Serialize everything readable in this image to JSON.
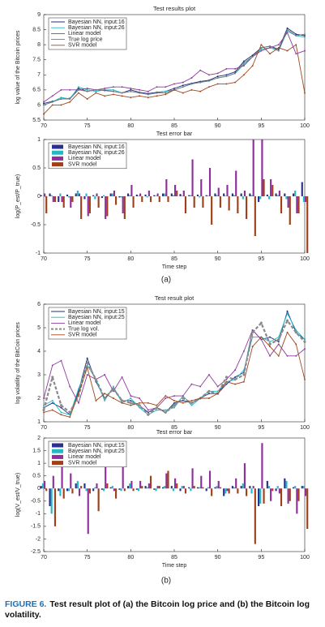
{
  "chart_data": [
    {
      "type": "line",
      "title": "Test results plot",
      "ylabel": "log value of the Bitcoin prices",
      "x": [
        70,
        71,
        72,
        73,
        74,
        75,
        76,
        77,
        78,
        79,
        80,
        81,
        82,
        83,
        84,
        85,
        86,
        87,
        88,
        89,
        90,
        91,
        92,
        93,
        94,
        95,
        96,
        97,
        98,
        99,
        100
      ],
      "xlim": [
        70,
        100
      ],
      "xticks": [
        70,
        75,
        80,
        85,
        90,
        95,
        100
      ],
      "ylim": [
        5.5,
        9
      ],
      "yticks": [
        5.5,
        6,
        6.5,
        7,
        7.5,
        8,
        8.5,
        9
      ],
      "legend": "upper left",
      "series": [
        {
          "name": "Bayesian NN, input:16",
          "color": "#1f2f7a",
          "values": [
            6.05,
            6.12,
            6.2,
            6.22,
            6.55,
            6.45,
            6.5,
            6.48,
            6.45,
            6.4,
            6.5,
            6.42,
            6.38,
            6.42,
            6.45,
            6.55,
            6.65,
            6.72,
            6.78,
            6.82,
            6.95,
            7.0,
            7.1,
            7.45,
            7.65,
            7.9,
            7.95,
            7.85,
            8.55,
            8.35,
            8.3
          ]
        },
        {
          "name": "Bayesian NN, input:26",
          "color": "#1fb8c8",
          "values": [
            6.0,
            6.1,
            6.25,
            6.2,
            6.6,
            6.5,
            6.45,
            6.5,
            6.5,
            6.4,
            6.45,
            6.4,
            6.35,
            6.4,
            6.45,
            6.5,
            6.6,
            6.7,
            6.75,
            6.8,
            6.9,
            6.95,
            7.05,
            7.35,
            7.6,
            7.85,
            7.9,
            7.8,
            8.45,
            8.3,
            8.25
          ]
        },
        {
          "name": "Linear model",
          "color": "#8e3a9c",
          "values": [
            6.1,
            6.3,
            6.5,
            6.5,
            6.5,
            6.55,
            6.5,
            6.55,
            6.6,
            6.6,
            6.55,
            6.5,
            6.45,
            6.6,
            6.6,
            6.7,
            6.75,
            6.9,
            7.15,
            7.0,
            7.05,
            7.2,
            7.2,
            7.3,
            7.6,
            7.8,
            7.9,
            8.0,
            8.4,
            7.7,
            7.8
          ]
        },
        {
          "name": "True log price",
          "color": "#7a7a7a",
          "values": [
            6.0,
            6.1,
            6.2,
            6.2,
            6.5,
            6.45,
            6.5,
            6.5,
            6.45,
            6.4,
            6.45,
            6.4,
            6.35,
            6.4,
            6.4,
            6.5,
            6.6,
            6.7,
            6.75,
            6.8,
            6.9,
            6.95,
            7.05,
            7.4,
            7.6,
            7.9,
            7.95,
            7.8,
            8.5,
            8.3,
            8.35
          ]
        },
        {
          "name": "SVR model",
          "color": "#a0461c",
          "values": [
            5.7,
            6.0,
            6.0,
            6.1,
            6.4,
            6.2,
            6.4,
            6.3,
            6.35,
            6.3,
            6.25,
            6.3,
            6.25,
            6.3,
            6.35,
            6.5,
            6.4,
            6.5,
            6.45,
            6.6,
            6.7,
            6.7,
            6.75,
            7.0,
            7.3,
            8.0,
            7.7,
            7.9,
            7.8,
            8.0,
            6.4
          ]
        }
      ]
    },
    {
      "type": "bar",
      "title": "Test error bar",
      "ylabel": "log(P_est/P_true)",
      "xlabel": "Time step",
      "x": [
        70,
        71,
        72,
        73,
        74,
        75,
        76,
        77,
        78,
        79,
        80,
        81,
        82,
        83,
        84,
        85,
        86,
        87,
        88,
        89,
        90,
        91,
        92,
        93,
        94,
        95,
        96,
        97,
        98,
        99,
        100
      ],
      "xlim": [
        70,
        100
      ],
      "xticks": [
        70,
        75,
        80,
        85,
        90,
        95,
        100
      ],
      "ylim": [
        -1,
        1
      ],
      "yticks": [
        -1,
        -0.5,
        0,
        0.5,
        1
      ],
      "legend": "upper left",
      "series": [
        {
          "name": "Bayesian NN, input:16",
          "color": "#2b2f8f",
          "values": [
            0.02,
            0.05,
            -0.1,
            0.03,
            0.05,
            -0.05,
            0.02,
            -0.03,
            0.05,
            -0.02,
            0.05,
            0.03,
            0.03,
            0.02,
            0.05,
            0.05,
            0.04,
            0.02,
            0.03,
            0.02,
            0.05,
            0.05,
            0.05,
            0.05,
            0.05,
            -0.1,
            0.03,
            0.05,
            0.05,
            0.05,
            0.25
          ]
        },
        {
          "name": "Bayesian NN, input:26",
          "color": "#22b8c8",
          "values": [
            0.0,
            0.02,
            0.05,
            -0.02,
            0.1,
            0.05,
            -0.05,
            0.02,
            0.05,
            -0.02,
            0.02,
            0.01,
            -0.02,
            0.01,
            0.05,
            0.02,
            0.01,
            0.02,
            -0.02,
            0.01,
            0.02,
            0.01,
            0.02,
            -0.05,
            0.02,
            -0.05,
            -0.05,
            0.02,
            -0.05,
            0.1,
            -0.1
          ]
        },
        {
          "name": "Linear model",
          "color": "#8e2f9c",
          "values": [
            0.05,
            -0.1,
            -0.1,
            -0.2,
            0.05,
            -0.35,
            0.05,
            -0.4,
            0.1,
            -0.3,
            0.2,
            0.05,
            0.1,
            0.05,
            0.3,
            0.2,
            0.1,
            0.65,
            0.3,
            0.5,
            0.15,
            0.2,
            0.45,
            0.1,
            1.0,
            1.0,
            0.3,
            0.1,
            -0.2,
            -0.3,
            -0.1
          ]
        },
        {
          "name": "SVR model",
          "color": "#a0401a",
          "values": [
            -0.3,
            -0.1,
            -0.2,
            -0.1,
            -0.4,
            -0.3,
            -0.2,
            -0.35,
            -0.15,
            -0.4,
            -0.2,
            -0.1,
            -0.1,
            -0.1,
            -0.1,
            0.1,
            -0.3,
            -0.2,
            -0.2,
            -0.5,
            -0.2,
            -0.25,
            -0.3,
            -0.4,
            -0.7,
            0.3,
            0.2,
            -0.3,
            -0.5,
            -0.3,
            -1.0
          ]
        }
      ]
    },
    {
      "type": "line",
      "title": "Test result plot",
      "ylabel": "log volatility of the BitCoin prices",
      "x": [
        70,
        71,
        72,
        73,
        74,
        75,
        76,
        77,
        78,
        79,
        80,
        81,
        82,
        83,
        84,
        85,
        86,
        87,
        88,
        89,
        90,
        91,
        92,
        93,
        94,
        95,
        96,
        97,
        98,
        99,
        100
      ],
      "xlim": [
        70,
        100
      ],
      "xticks": [
        70,
        75,
        80,
        85,
        90,
        95,
        100
      ],
      "ylim": [
        1,
        6
      ],
      "yticks": [
        1,
        2,
        3,
        4,
        5,
        6
      ],
      "legend": "upper left",
      "series": [
        {
          "name": "Bayesian NN, input:15",
          "color": "#1f2f7a",
          "values": [
            1.6,
            1.8,
            1.6,
            1.3,
            2.3,
            3.7,
            2.7,
            2.0,
            2.4,
            1.9,
            1.9,
            1.7,
            1.4,
            1.6,
            1.4,
            1.8,
            1.9,
            1.8,
            2.0,
            2.2,
            2.2,
            2.6,
            2.9,
            3.1,
            4.9,
            4.5,
            4.6,
            4.4,
            5.7,
            4.8,
            4.5
          ]
        },
        {
          "name": "Bayesian NN, input:25",
          "color": "#1fb8c8",
          "values": [
            1.7,
            1.9,
            1.4,
            1.3,
            2.4,
            3.4,
            2.8,
            1.9,
            2.5,
            1.8,
            2.0,
            1.6,
            1.3,
            1.5,
            1.5,
            1.6,
            2.1,
            1.7,
            2.0,
            2.3,
            2.3,
            2.7,
            2.8,
            3.2,
            4.6,
            4.6,
            4.4,
            4.6,
            5.6,
            4.9,
            4.5
          ]
        },
        {
          "name": "Linear model",
          "color": "#8e3a9c",
          "values": [
            2.0,
            3.4,
            3.6,
            2.5,
            1.8,
            3.0,
            2.8,
            3.0,
            2.3,
            2.9,
            2.1,
            2.0,
            1.5,
            1.6,
            2.0,
            2.1,
            2.1,
            2.6,
            2.5,
            3.0,
            2.5,
            2.8,
            3.2,
            4.0,
            4.9,
            4.5,
            3.8,
            4.3,
            3.8,
            3.8,
            4.1
          ]
        },
        {
          "name": "True log vol.",
          "color": "#8a8a8a",
          "dash": true,
          "values": [
            1.5,
            2.9,
            1.7,
            1.4,
            2.1,
            3.5,
            2.8,
            2.0,
            2.4,
            1.9,
            1.8,
            1.7,
            1.3,
            1.6,
            1.4,
            1.7,
            2.0,
            1.8,
            2.0,
            2.3,
            2.2,
            2.9,
            2.8,
            3.0,
            4.8,
            5.2,
            4.3,
            4.5,
            5.3,
            4.8,
            4.4
          ]
        },
        {
          "name": "SVR model",
          "color": "#a0461c",
          "values": [
            1.4,
            1.5,
            1.3,
            1.2,
            2.2,
            3.3,
            1.9,
            2.2,
            2.0,
            1.8,
            1.7,
            1.8,
            1.8,
            1.7,
            2.1,
            1.9,
            1.8,
            1.9,
            2.0,
            2.0,
            2.2,
            2.7,
            2.6,
            2.7,
            4.2,
            4.6,
            4.2,
            3.8,
            4.8,
            4.3,
            2.8
          ]
        }
      ]
    },
    {
      "type": "bar",
      "title": "Test error bar",
      "ylabel": "log(V_est/V_true)",
      "xlabel": "Time step",
      "x": [
        70,
        71,
        72,
        73,
        74,
        75,
        76,
        77,
        78,
        79,
        80,
        81,
        82,
        83,
        84,
        85,
        86,
        87,
        88,
        89,
        90,
        91,
        92,
        93,
        94,
        95,
        96,
        97,
        98,
        99,
        100
      ],
      "xlim": [
        70,
        100
      ],
      "xticks": [
        70,
        75,
        80,
        85,
        90,
        95,
        100
      ],
      "ylim": [
        -2.5,
        2
      ],
      "yticks": [
        -2.5,
        -2,
        -1.5,
        -1,
        -0.5,
        0,
        0.5,
        1,
        1.5,
        2
      ],
      "legend": "upper left",
      "series": [
        {
          "name": "Bayesian NN, input:15",
          "color": "#2b2f8f",
          "values": [
            0.1,
            -0.7,
            -0.1,
            -0.1,
            0.2,
            0.2,
            -0.1,
            -0.05,
            0.05,
            -0.05,
            0.1,
            -0.05,
            0.1,
            -0.05,
            0.05,
            0.1,
            -0.1,
            0.05,
            0.05,
            -0.1,
            0.05,
            -0.3,
            0.1,
            0.1,
            0.1,
            -0.7,
            0.3,
            -0.1,
            0.4,
            0.05,
            0.1
          ]
        },
        {
          "name": "Bayesian NN, input:25",
          "color": "#22b8c8",
          "values": [
            0.2,
            -1.0,
            -0.3,
            -0.1,
            0.3,
            -0.1,
            0.05,
            -0.1,
            0.1,
            -0.1,
            0.2,
            -0.1,
            0.05,
            -0.1,
            0.1,
            -0.1,
            0.1,
            -0.1,
            0.05,
            0.05,
            0.1,
            -0.2,
            0.05,
            0.2,
            -0.2,
            -0.6,
            0.1,
            0.1,
            0.3,
            0.1,
            0.1
          ]
        },
        {
          "name": "Linear model",
          "color": "#8e2f9c",
          "values": [
            0.3,
            0.5,
            1.0,
            0.6,
            -0.3,
            -1.8,
            0.2,
            1.0,
            -0.1,
            1.0,
            0.3,
            0.3,
            0.2,
            0.1,
            0.6,
            0.4,
            0.1,
            0.8,
            0.5,
            0.7,
            0.3,
            -0.1,
            0.4,
            1.0,
            0.1,
            1.8,
            -0.5,
            -0.2,
            -0.6,
            -1.0,
            -0.3
          ]
        },
        {
          "name": "SVR model",
          "color": "#a0401a",
          "values": [
            -0.1,
            -1.5,
            -0.4,
            -0.2,
            0.1,
            -0.2,
            -0.9,
            0.2,
            -0.4,
            -0.1,
            -0.1,
            0.1,
            0.5,
            0.1,
            0.7,
            0.2,
            -0.2,
            0.1,
            0.05,
            -0.3,
            0.05,
            -0.2,
            -0.2,
            -0.3,
            -2.2,
            -0.6,
            -0.1,
            -0.7,
            -0.5,
            -0.5,
            -1.6
          ]
        }
      ]
    }
  ],
  "panel_labels": [
    "(a)",
    "(b)"
  ],
  "caption": {
    "label": "FIGURE 6.",
    "text": "Test result plot of (a) the Bitcoin log price and (b) the Bitcoin log volatility."
  }
}
